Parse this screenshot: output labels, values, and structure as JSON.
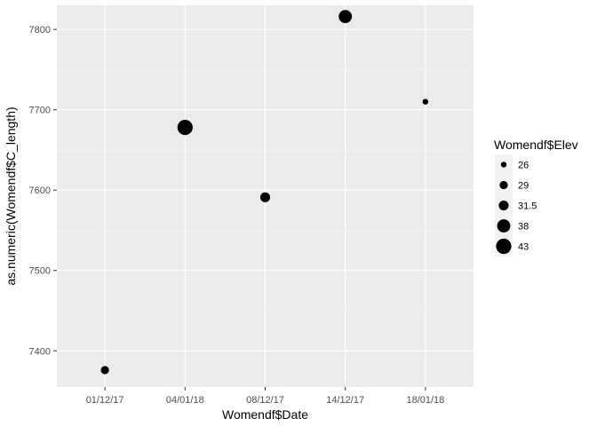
{
  "chart_data": {
    "type": "scatter",
    "xlabel": "Womendf$Date",
    "ylabel": "as.numeric(Womendf$C_length)",
    "x_categories": [
      "01/12/17",
      "04/01/18",
      "08/12/17",
      "14/12/17",
      "18/01/18"
    ],
    "ylim": [
      7355,
      7830
    ],
    "y_ticks": [
      7400,
      7500,
      7600,
      7700,
      7800
    ],
    "points": [
      {
        "x": "01/12/17",
        "y": 7376,
        "size": 29
      },
      {
        "x": "04/01/18",
        "y": 7678,
        "size": 43
      },
      {
        "x": "08/12/17",
        "y": 7591,
        "size": 31.5
      },
      {
        "x": "14/12/17",
        "y": 7816,
        "size": 38
      },
      {
        "x": "18/01/18",
        "y": 7710,
        "size": 26
      }
    ],
    "legend": {
      "title": "Womendf$Elev",
      "position": "right",
      "entries": [
        {
          "label": "26",
          "size": 26
        },
        {
          "label": "29",
          "size": 29
        },
        {
          "label": "31.5",
          "size": 31.5
        },
        {
          "label": "38",
          "size": 38
        },
        {
          "label": "43",
          "size": 43
        }
      ]
    },
    "grid": true,
    "colors": {
      "panel": "#ebebeb",
      "grid_major": "#ffffff",
      "grid_minor": "#f5f5f5",
      "point": "#000000",
      "tick_text": "#4d4d4d"
    }
  }
}
